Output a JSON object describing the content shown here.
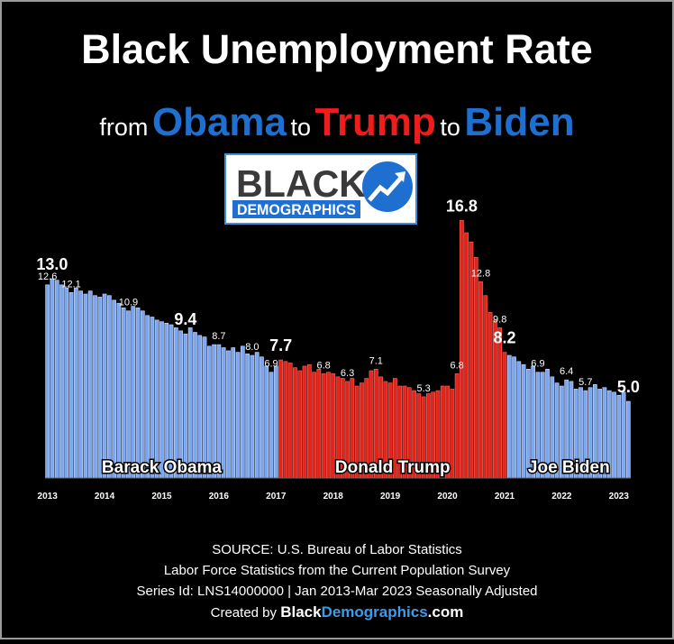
{
  "chart_data": {
    "type": "bar",
    "title": "Black Unemployment Rate",
    "subtitle": [
      {
        "text": "from",
        "color": "#ffffff",
        "big": false
      },
      {
        "text": "Obama",
        "color": "#1f6fd0",
        "big": true
      },
      {
        "text": "to",
        "color": "#ffffff",
        "big": false
      },
      {
        "text": "Trump",
        "color": "#ee1c1c",
        "big": true
      },
      {
        "text": "to",
        "color": "#ffffff",
        "big": false
      },
      {
        "text": "Biden",
        "color": "#1f6fd0",
        "big": true
      }
    ],
    "logo": {
      "top": "BLACK",
      "bottom": "DEMOGRAPHICS"
    },
    "categories": [
      "2013",
      null,
      null,
      null,
      null,
      null,
      null,
      null,
      null,
      null,
      null,
      null,
      "2014",
      null,
      null,
      null,
      null,
      null,
      null,
      null,
      null,
      null,
      null,
      null,
      "2015",
      null,
      null,
      null,
      null,
      null,
      null,
      null,
      null,
      null,
      null,
      null,
      "2016",
      null,
      null,
      null,
      null,
      null,
      null,
      null,
      null,
      null,
      null,
      null,
      "2017",
      null,
      null,
      null,
      null,
      null,
      null,
      null,
      null,
      null,
      null,
      null,
      "2018",
      null,
      null,
      null,
      null,
      null,
      null,
      null,
      null,
      null,
      null,
      null,
      "2019",
      null,
      null,
      null,
      null,
      null,
      null,
      null,
      null,
      null,
      null,
      null,
      "2020",
      null,
      null,
      null,
      null,
      null,
      null,
      null,
      null,
      null,
      null,
      null,
      "2021",
      null,
      null,
      null,
      null,
      null,
      null,
      null,
      null,
      null,
      null,
      null,
      "2022",
      null,
      null,
      null,
      null,
      null,
      null,
      null,
      null,
      null,
      null,
      null,
      "2023",
      null,
      null
    ],
    "series": [
      {
        "name": "Barack Obama",
        "color": "#7ba7f2",
        "values": [
          12.6,
          13.0,
          12.9,
          12.6,
          12.4,
          12.1,
          12.4,
          12.2,
          12.0,
          12.2,
          11.9,
          11.8,
          12.0,
          11.9,
          11.6,
          11.4,
          11.1,
          10.9,
          11.2,
          11.1,
          10.9,
          10.6,
          10.5,
          10.3,
          10.2,
          10.1,
          10.0,
          9.8,
          9.6,
          9.4,
          9.8,
          9.5,
          9.3,
          9.2,
          8.6,
          8.7,
          8.7,
          8.5,
          8.3,
          8.5,
          8.2,
          8.6,
          8.1,
          8.0,
          8.2,
          7.9,
          7.3,
          6.9,
          7.3,
          null,
          null,
          null,
          null,
          null,
          null,
          null,
          null,
          null,
          null,
          null,
          null,
          null,
          null,
          null,
          null,
          null,
          null,
          null,
          null,
          null,
          null,
          null,
          null,
          null,
          null,
          null,
          null,
          null,
          null,
          null,
          null,
          null,
          null,
          null,
          null,
          null,
          null,
          null,
          null,
          null,
          null,
          null,
          null,
          null,
          null,
          null,
          null,
          null,
          null,
          null,
          null,
          null,
          null,
          null,
          null,
          null,
          null,
          null,
          null,
          null,
          null,
          null,
          null,
          null,
          null,
          null,
          null,
          null,
          null,
          null,
          null,
          null,
          null
        ],
        "value_labels": [
          "12.6",
          "13.0",
          null,
          null,
          null,
          "12.1",
          null,
          null,
          null,
          null,
          null,
          null,
          null,
          null,
          null,
          null,
          null,
          "10.9",
          null,
          null,
          null,
          null,
          null,
          null,
          null,
          null,
          null,
          null,
          null,
          "9.4",
          null,
          null,
          null,
          null,
          null,
          null,
          "8.7",
          null,
          null,
          null,
          null,
          null,
          null,
          "8.0",
          null,
          null,
          null,
          "6.9",
          null,
          null,
          null,
          null,
          null,
          null,
          null,
          null,
          null,
          null,
          null,
          null,
          null,
          null,
          null,
          null,
          null,
          null,
          null,
          null,
          null,
          null,
          null,
          null,
          null,
          null,
          null,
          null,
          null,
          null,
          null,
          null,
          null,
          null,
          null,
          null,
          null,
          null,
          null,
          null,
          null,
          null,
          null,
          null,
          null,
          null,
          null,
          null,
          null,
          null,
          null,
          null,
          null,
          null,
          null,
          null,
          null,
          null,
          null,
          null,
          null,
          null,
          null,
          null,
          null,
          null,
          null,
          null,
          null,
          null,
          null,
          null,
          null,
          null,
          null
        ]
      },
      {
        "name": "Donald Trump",
        "color": "#e3231c",
        "values": [
          null,
          null,
          null,
          null,
          null,
          null,
          null,
          null,
          null,
          null,
          null,
          null,
          null,
          null,
          null,
          null,
          null,
          null,
          null,
          null,
          null,
          null,
          null,
          null,
          null,
          null,
          null,
          null,
          null,
          null,
          null,
          null,
          null,
          null,
          null,
          null,
          null,
          null,
          null,
          null,
          null,
          null,
          null,
          null,
          null,
          null,
          null,
          null,
          null,
          7.7,
          7.6,
          7.5,
          7.2,
          7.0,
          7.3,
          7.4,
          6.9,
          7.1,
          6.8,
          6.9,
          6.8,
          6.6,
          6.5,
          6.3,
          6.5,
          6.0,
          6.2,
          6.5,
          7.0,
          7.1,
          6.6,
          6.3,
          6.2,
          6.5,
          6.0,
          6.0,
          5.9,
          5.7,
          5.5,
          5.3,
          5.5,
          5.6,
          5.7,
          6.0,
          6.0,
          5.8,
          6.8,
          16.8,
          16.0,
          15.4,
          14.4,
          12.8,
          11.9,
          10.8,
          10.3,
          9.8,
          8.2,
          null,
          null,
          null,
          null,
          null,
          null,
          null,
          null,
          null,
          null,
          null,
          null,
          null,
          null,
          null,
          null,
          null,
          null,
          null,
          null,
          null,
          null,
          null,
          null,
          null,
          null
        ],
        "value_labels": [
          null,
          null,
          null,
          null,
          null,
          null,
          null,
          null,
          null,
          null,
          null,
          null,
          null,
          null,
          null,
          null,
          null,
          null,
          null,
          null,
          null,
          null,
          null,
          null,
          null,
          null,
          null,
          null,
          null,
          null,
          null,
          null,
          null,
          null,
          null,
          null,
          null,
          null,
          null,
          null,
          null,
          null,
          null,
          null,
          null,
          null,
          null,
          null,
          null,
          "7.7",
          null,
          null,
          null,
          null,
          null,
          null,
          null,
          null,
          "6.8",
          null,
          null,
          null,
          null,
          "6.3",
          null,
          null,
          null,
          null,
          null,
          "7.1",
          null,
          null,
          null,
          null,
          null,
          null,
          null,
          null,
          null,
          "5.3",
          null,
          null,
          null,
          null,
          null,
          null,
          "6.8",
          "16.8",
          null,
          null,
          null,
          "12.8",
          null,
          null,
          null,
          "9.8",
          "8.2",
          null,
          null,
          null,
          null,
          null,
          null,
          null,
          null,
          null,
          null,
          null,
          null,
          null,
          null,
          null,
          null,
          null,
          null,
          null,
          null,
          null,
          null,
          null,
          null,
          null,
          null
        ]
      },
      {
        "name": "Joe Biden",
        "color": "#7ba7f2",
        "values": [
          null,
          null,
          null,
          null,
          null,
          null,
          null,
          null,
          null,
          null,
          null,
          null,
          null,
          null,
          null,
          null,
          null,
          null,
          null,
          null,
          null,
          null,
          null,
          null,
          null,
          null,
          null,
          null,
          null,
          null,
          null,
          null,
          null,
          null,
          null,
          null,
          null,
          null,
          null,
          null,
          null,
          null,
          null,
          null,
          null,
          null,
          null,
          null,
          null,
          null,
          null,
          null,
          null,
          null,
          null,
          null,
          null,
          null,
          null,
          null,
          null,
          null,
          null,
          null,
          null,
          null,
          null,
          null,
          null,
          null,
          null,
          null,
          null,
          null,
          null,
          null,
          null,
          null,
          null,
          null,
          null,
          null,
          null,
          null,
          null,
          null,
          null,
          null,
          null,
          null,
          null,
          null,
          null,
          null,
          null,
          null,
          null,
          8.0,
          7.9,
          7.6,
          7.4,
          7.1,
          7.3,
          6.9,
          6.9,
          7.1,
          6.6,
          6.2,
          6.0,
          6.4,
          6.3,
          5.8,
          5.9,
          5.7,
          5.9,
          6.1,
          5.8,
          5.9,
          5.7,
          5.6,
          5.4,
          5.6,
          5.0
        ],
        "value_labels": [
          null,
          null,
          null,
          null,
          null,
          null,
          null,
          null,
          null,
          null,
          null,
          null,
          null,
          null,
          null,
          null,
          null,
          null,
          null,
          null,
          null,
          null,
          null,
          null,
          null,
          null,
          null,
          null,
          null,
          null,
          null,
          null,
          null,
          null,
          null,
          null,
          null,
          null,
          null,
          null,
          null,
          null,
          null,
          null,
          null,
          null,
          null,
          null,
          null,
          null,
          null,
          null,
          null,
          null,
          null,
          null,
          null,
          null,
          null,
          null,
          null,
          null,
          null,
          null,
          null,
          null,
          null,
          null,
          null,
          null,
          null,
          null,
          null,
          null,
          null,
          null,
          null,
          null,
          null,
          null,
          null,
          null,
          null,
          null,
          null,
          null,
          null,
          null,
          null,
          null,
          null,
          null,
          null,
          null,
          null,
          null,
          null,
          null,
          null,
          null,
          null,
          null,
          null,
          "6.9",
          null,
          null,
          null,
          null,
          null,
          "6.4",
          null,
          null,
          null,
          "5.7",
          null,
          null,
          null,
          null,
          null,
          null,
          null,
          null,
          "5.0"
        ]
      }
    ],
    "emphasized_labels": [
      "13.0",
      "9.4",
      "7.7",
      "16.8",
      "8.2",
      "5.0"
    ],
    "ylim": [
      0,
      17
    ],
    "source": [
      "SOURCE: U.S. Bureau of Labor Statistics",
      "Labor Force Statistics from the Current Population Survey",
      "Series Id: LNS14000000 | Jan 2013-Mar 2023 Seasonally Adjusted"
    ],
    "credit": [
      {
        "text": "Created by ",
        "color": "#ffffff",
        "bold": false
      },
      {
        "text": "Black",
        "color": "#ffffff",
        "bold": true
      },
      {
        "text": "Demographics",
        "color": "#3d9be9",
        "bold": true
      },
      {
        "text": ".com",
        "color": "#ffffff",
        "bold": true
      }
    ]
  }
}
